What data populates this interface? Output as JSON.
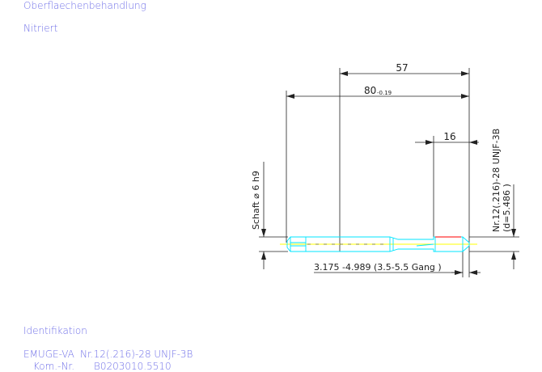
{
  "header": {
    "section_label": "Oberflaechenbehandlung",
    "section_value": "Nitriert"
  },
  "footer": {
    "section_label": "Identifikation",
    "line1_name": "EMUGE-VA",
    "line1_value": "Nr.12(.216)-28 UNJF-3B",
    "line2_name": "Kom.-Nr.",
    "line2_value": "B0203010.5510"
  },
  "drawing": {
    "dim_57": "57",
    "dim_80": "80",
    "dim_80_tol": "-0.19",
    "dim_16": "16",
    "shank_label": "Schaft ⌀ 6 h9",
    "thread_label": "Nr.12(.216)-28 UNJF-3B",
    "thread_diameter": "(d=5.486 )",
    "range_label": "3.175 -4.989 (3.5-5.5 Gang  )",
    "colors": {
      "outline": "#00e5ff",
      "centerline": "#ffff00",
      "thread": "#ff3030",
      "dimension": "#222222",
      "text": "#6f6fe8"
    }
  }
}
